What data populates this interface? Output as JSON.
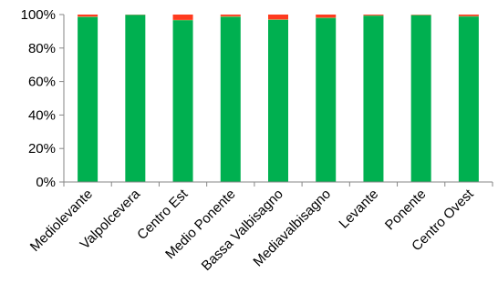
{
  "chart_data": {
    "type": "bar",
    "stacked": "percent",
    "categories": [
      "Mediolevante",
      "Valpolcevera",
      "Centro Est",
      "Medio Ponente",
      "Bassa Valbisagno",
      "Mediavalbisagno",
      "Levante",
      "Ponente",
      "Centro Ovest"
    ],
    "series": [
      {
        "color": "#00b050",
        "values": [
          98.5,
          99.8,
          96.5,
          98.5,
          96.8,
          97.8,
          99.3,
          99.6,
          98.8
        ]
      },
      {
        "color": "#70ad47",
        "values": [
          0.3,
          0.1,
          0.3,
          0.5,
          0.3,
          0.4,
          0.2,
          0.2,
          0.3
        ]
      },
      {
        "color": "#ff3b1f",
        "values": [
          1.2,
          0.1,
          3.2,
          1.0,
          2.9,
          1.8,
          0.5,
          0.2,
          0.9
        ]
      }
    ],
    "yticks": [
      "0%",
      "20%",
      "40%",
      "60%",
      "80%",
      "100%"
    ],
    "ylim": [
      0,
      100
    ],
    "grid": false,
    "legend": "none",
    "title": "",
    "xlabel": "",
    "ylabel": ""
  }
}
